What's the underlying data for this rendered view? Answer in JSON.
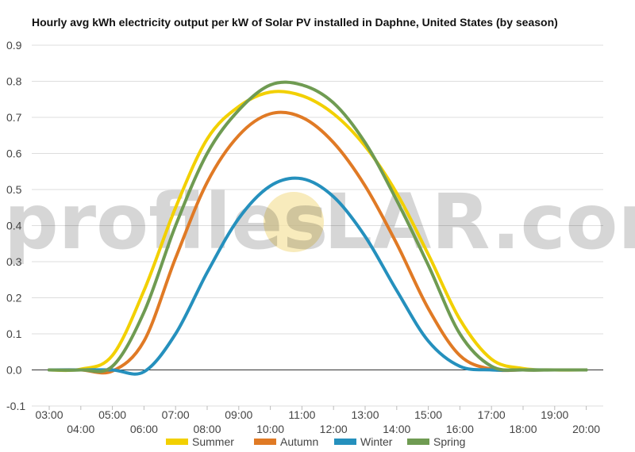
{
  "watermark": {
    "left": "profiles",
    "right": "LAR.com",
    "sun_color": "#f5e4a6"
  },
  "chart_data": {
    "type": "line",
    "title": "Hourly avg kWh electricity output per kW of Solar PV installed in Daphne, United States (by season)",
    "xlabel": "",
    "ylabel": "",
    "x": [
      "03:00",
      "04:00",
      "05:00",
      "06:00",
      "07:00",
      "08:00",
      "09:00",
      "10:00",
      "11:00",
      "12:00",
      "13:00",
      "14:00",
      "15:00",
      "16:00",
      "17:00",
      "18:00",
      "19:00",
      "20:00"
    ],
    "ylim": [
      -0.1,
      0.9
    ],
    "yticks": [
      "-0.1",
      "0.0",
      "0.1",
      "0.2",
      "0.3",
      "0.4",
      "0.5",
      "0.6",
      "0.7",
      "0.8",
      "0.9"
    ],
    "grid": true,
    "legend": "bottom",
    "series": [
      {
        "name": "Summer",
        "color": "#f2d000",
        "values": [
          0.0,
          0.002,
          0.04,
          0.22,
          0.45,
          0.64,
          0.73,
          0.77,
          0.76,
          0.71,
          0.62,
          0.49,
          0.32,
          0.14,
          0.03,
          0.004,
          0.0,
          0.0
        ]
      },
      {
        "name": "Autumn",
        "color": "#e07a25",
        "values": [
          0.0,
          0.0,
          -0.003,
          0.08,
          0.31,
          0.52,
          0.65,
          0.71,
          0.7,
          0.63,
          0.51,
          0.35,
          0.17,
          0.04,
          0.002,
          0.0,
          0.0,
          0.0
        ]
      },
      {
        "name": "Winter",
        "color": "#2590bd",
        "values": [
          0.0,
          0.0,
          0.0,
          -0.005,
          0.1,
          0.27,
          0.42,
          0.51,
          0.53,
          0.48,
          0.37,
          0.22,
          0.08,
          0.01,
          0.0,
          0.0,
          0.0,
          0.0
        ]
      },
      {
        "name": "Spring",
        "color": "#6f9b52",
        "values": [
          0.0,
          0.0,
          0.01,
          0.16,
          0.4,
          0.6,
          0.72,
          0.79,
          0.79,
          0.74,
          0.63,
          0.47,
          0.29,
          0.1,
          0.01,
          0.0,
          0.0,
          0.0
        ]
      }
    ]
  }
}
